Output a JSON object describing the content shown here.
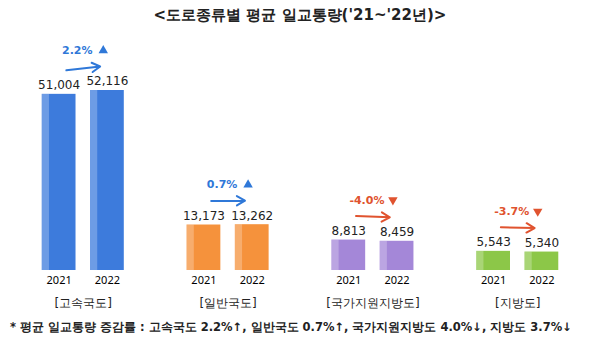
{
  "chart_data": {
    "type": "bar",
    "title": "<도로종류별 평균 일교통량('21~'22년)>",
    "groups": [
      "[고속국도]",
      "[일반국도]",
      "[국가지원지방도]",
      "[지방도]"
    ],
    "colors": [
      "#3d7bdc",
      "#f5923c",
      "#a487d8",
      "#8cc748"
    ],
    "series": [
      {
        "name": "2021",
        "values": [
          51004,
          13173,
          8813,
          5543
        ],
        "value_labels": [
          "51,004",
          "13,173",
          "8,813",
          "5,543"
        ]
      },
      {
        "name": "2022",
        "values": [
          52116,
          13262,
          8459,
          5340
        ],
        "value_labels": [
          "52,116",
          "13,262",
          "8,459",
          "5,340"
        ]
      }
    ],
    "changes": [
      2.2,
      0.7,
      -4.0,
      -3.7
    ],
    "change_labels": [
      "2.2%",
      "0.7%",
      "-4.0%",
      "-3.7%"
    ],
    "note": "* 평균 일교통량 증감률 : 고속국도 2.2%↑, 일반국도 0.7%↑, 국가지원지방도 4.0%↓, 지방도 3.7%↓",
    "data_labels": true,
    "tick_labels": "x"
  }
}
